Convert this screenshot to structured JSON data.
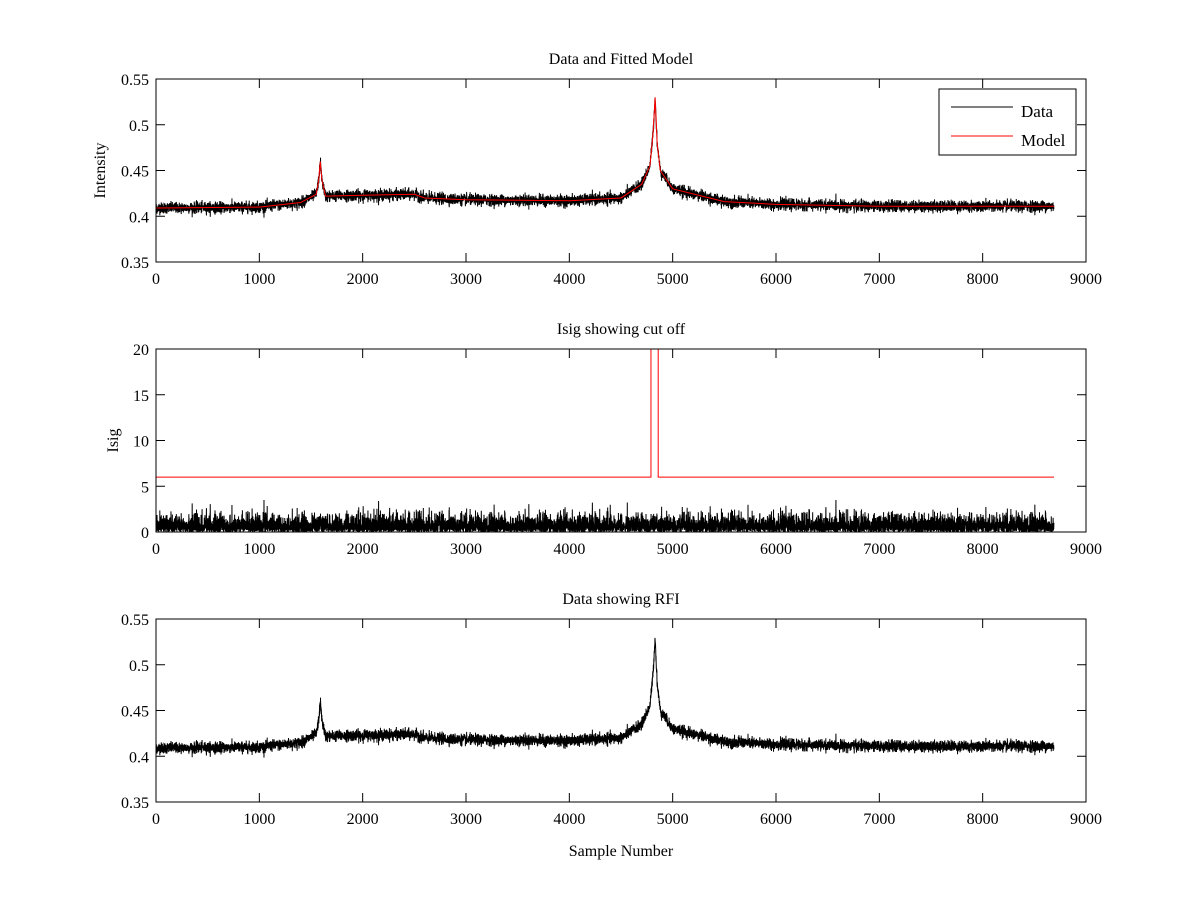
{
  "chart_data": [
    {
      "type": "line",
      "title": "Data and Fitted Model",
      "xlabel": "",
      "ylabel": "Intensity",
      "xlim": [
        0,
        9000
      ],
      "ylim": [
        0.35,
        0.55
      ],
      "xticks": [
        0,
        1000,
        2000,
        3000,
        4000,
        5000,
        6000,
        7000,
        8000,
        9000
      ],
      "yticks": [
        "0.35",
        "0.4",
        "0.45",
        "0.5",
        "0.55"
      ],
      "legend": {
        "placement": "top-right",
        "entries": [
          "Data",
          "Model"
        ]
      },
      "series": [
        {
          "name": "Data",
          "color": "#000000",
          "kind": "noisy",
          "noise_std": 0.003
        },
        {
          "name": "Model",
          "color": "#ff0000",
          "x": [
            0,
            1000,
            1400,
            1550,
            1575,
            1590,
            1605,
            1640,
            2000,
            2500,
            2600,
            3000,
            4000,
            4500,
            4700,
            4780,
            4810,
            4830,
            4850,
            4880,
            5000,
            5500,
            6000,
            7000,
            8000,
            8690
          ],
          "y": [
            0.409,
            0.41,
            0.415,
            0.424,
            0.44,
            0.46,
            0.44,
            0.422,
            0.423,
            0.424,
            0.42,
            0.418,
            0.417,
            0.42,
            0.435,
            0.455,
            0.49,
            0.53,
            0.48,
            0.45,
            0.43,
            0.416,
            0.413,
            0.411,
            0.411,
            0.411
          ]
        }
      ],
      "n_samples": 8690
    },
    {
      "type": "line",
      "title": "Isig showing cut off",
      "xlabel": "",
      "ylabel": "Isig",
      "xlim": [
        0,
        9000
      ],
      "ylim": [
        0,
        20
      ],
      "xticks": [
        0,
        1000,
        2000,
        3000,
        4000,
        5000,
        6000,
        7000,
        8000,
        9000
      ],
      "yticks": [
        "0",
        "5",
        "10",
        "15",
        "20"
      ],
      "series": [
        {
          "name": "Isig",
          "color": "#000000",
          "kind": "abs-noise",
          "max": 3.5
        },
        {
          "name": "Cut off",
          "color": "#ff0000",
          "x": [
            0,
            4790,
            4790,
            4860,
            4860,
            8690
          ],
          "y": [
            6,
            6,
            20,
            20,
            6,
            6
          ]
        }
      ]
    },
    {
      "type": "line",
      "title": "Data showing RFI",
      "xlabel": "Sample Number",
      "ylabel": "",
      "xlim": [
        0,
        9000
      ],
      "ylim": [
        0.35,
        0.55
      ],
      "xticks": [
        0,
        1000,
        2000,
        3000,
        4000,
        5000,
        6000,
        7000,
        8000,
        9000
      ],
      "yticks": [
        "0.35",
        "0.4",
        "0.45",
        "0.5",
        "0.55"
      ],
      "series": [
        {
          "name": "Data",
          "color": "#000000",
          "kind": "noisy",
          "noise_std": 0.003
        }
      ]
    }
  ]
}
